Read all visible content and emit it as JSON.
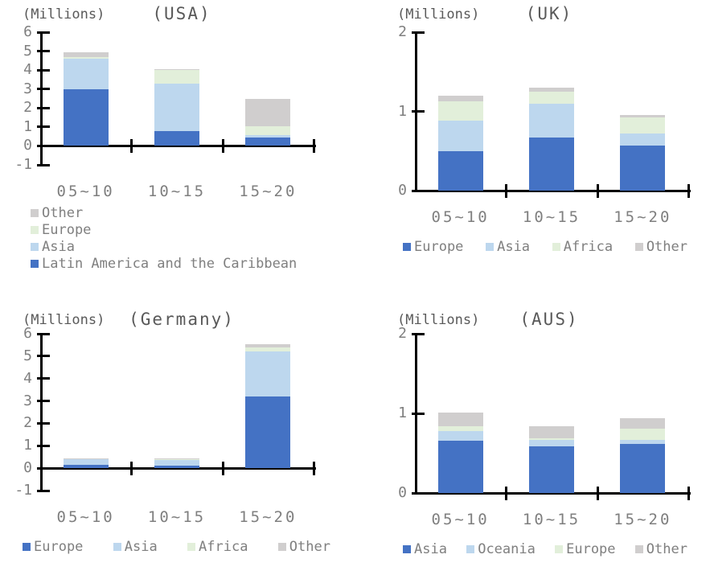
{
  "chart_data": [
    {
      "type": "bar",
      "stacked": true,
      "title": "(USA)",
      "units_label": "(Millions)",
      "categories": [
        "05~10",
        "10~15",
        "15~20"
      ],
      "ylim": [
        -1,
        6
      ],
      "yticks": [
        6,
        5,
        4,
        3,
        2,
        1,
        0,
        -1
      ],
      "grid": false,
      "legend_position": "bottom-left-vertical",
      "legend_order": [
        "Other",
        "Europe",
        "Asia",
        "Latin America and the Caribbean"
      ],
      "series": [
        {
          "name": "Latin America and the Caribbean",
          "color": "#4472C4",
          "values": [
            3.0,
            0.8,
            0.45
          ]
        },
        {
          "name": "Asia",
          "color": "#BDD7EE",
          "values": [
            1.6,
            2.5,
            0.1
          ]
        },
        {
          "name": "Europe",
          "color": "#E2EFDA",
          "values": [
            0.1,
            0.7,
            0.5
          ]
        },
        {
          "name": "Other",
          "color": "#D0CECE",
          "values": [
            0.25,
            0.05,
            1.45
          ]
        }
      ]
    },
    {
      "type": "bar",
      "stacked": true,
      "title": "(UK)",
      "units_label": "(Millions)",
      "categories": [
        "05~10",
        "10~15",
        "15~20"
      ],
      "ylim": [
        0,
        2
      ],
      "yticks": [
        2,
        1,
        0
      ],
      "grid": false,
      "legend_position": "bottom-horizontal",
      "legend_order": [
        "Europe",
        "Asia",
        "Africa",
        "Other"
      ],
      "series": [
        {
          "name": "Europe",
          "color": "#4472C4",
          "values": [
            0.5,
            0.67,
            0.57
          ]
        },
        {
          "name": "Asia",
          "color": "#BDD7EE",
          "values": [
            0.38,
            0.43,
            0.15
          ]
        },
        {
          "name": "Africa",
          "color": "#E2EFDA",
          "values": [
            0.25,
            0.15,
            0.2
          ]
        },
        {
          "name": "Other",
          "color": "#D0CECE",
          "values": [
            0.07,
            0.05,
            0.03
          ]
        }
      ]
    },
    {
      "type": "bar",
      "stacked": true,
      "title": "(Germany)",
      "units_label": "(Millions)",
      "categories": [
        "05~10",
        "10~15",
        "15~20"
      ],
      "ylim": [
        -1,
        6
      ],
      "yticks": [
        6,
        5,
        4,
        3,
        2,
        1,
        0,
        -1
      ],
      "grid": false,
      "legend_position": "bottom-horizontal",
      "legend_order": [
        "Europe",
        "Asia",
        "Africa",
        "Other"
      ],
      "series": [
        {
          "name": "Europe",
          "color": "#4472C4",
          "values": [
            0.15,
            0.12,
            3.2
          ]
        },
        {
          "name": "Asia",
          "color": "#BDD7EE",
          "values": [
            0.27,
            0.25,
            2.0
          ]
        },
        {
          "name": "Africa",
          "color": "#E2EFDA",
          "values": [
            0.02,
            0.02,
            0.2
          ]
        },
        {
          "name": "Other",
          "color": "#D0CECE",
          "values": [
            0.01,
            0.03,
            0.15
          ]
        }
      ]
    },
    {
      "type": "bar",
      "stacked": true,
      "title": "(AUS)",
      "units_label": "(Millions)",
      "categories": [
        "05~10",
        "10~15",
        "15~20"
      ],
      "ylim": [
        0,
        2
      ],
      "yticks": [
        2,
        1,
        0
      ],
      "grid": false,
      "legend_position": "bottom-horizontal",
      "legend_order": [
        "Asia",
        "Oceania",
        "Europe",
        "Other"
      ],
      "series": [
        {
          "name": "Asia",
          "color": "#4472C4",
          "values": [
            0.66,
            0.59,
            0.62
          ]
        },
        {
          "name": "Oceania",
          "color": "#BDD7EE",
          "values": [
            0.12,
            0.08,
            0.05
          ]
        },
        {
          "name": "Europe",
          "color": "#E2EFDA",
          "values": [
            0.06,
            0.02,
            0.14
          ]
        },
        {
          "name": "Other",
          "color": "#D0CECE",
          "values": [
            0.17,
            0.15,
            0.13
          ]
        }
      ]
    }
  ],
  "palette": {
    "axis": "#000000",
    "label_text": "#7f7f7f",
    "title_text": "#595959"
  }
}
